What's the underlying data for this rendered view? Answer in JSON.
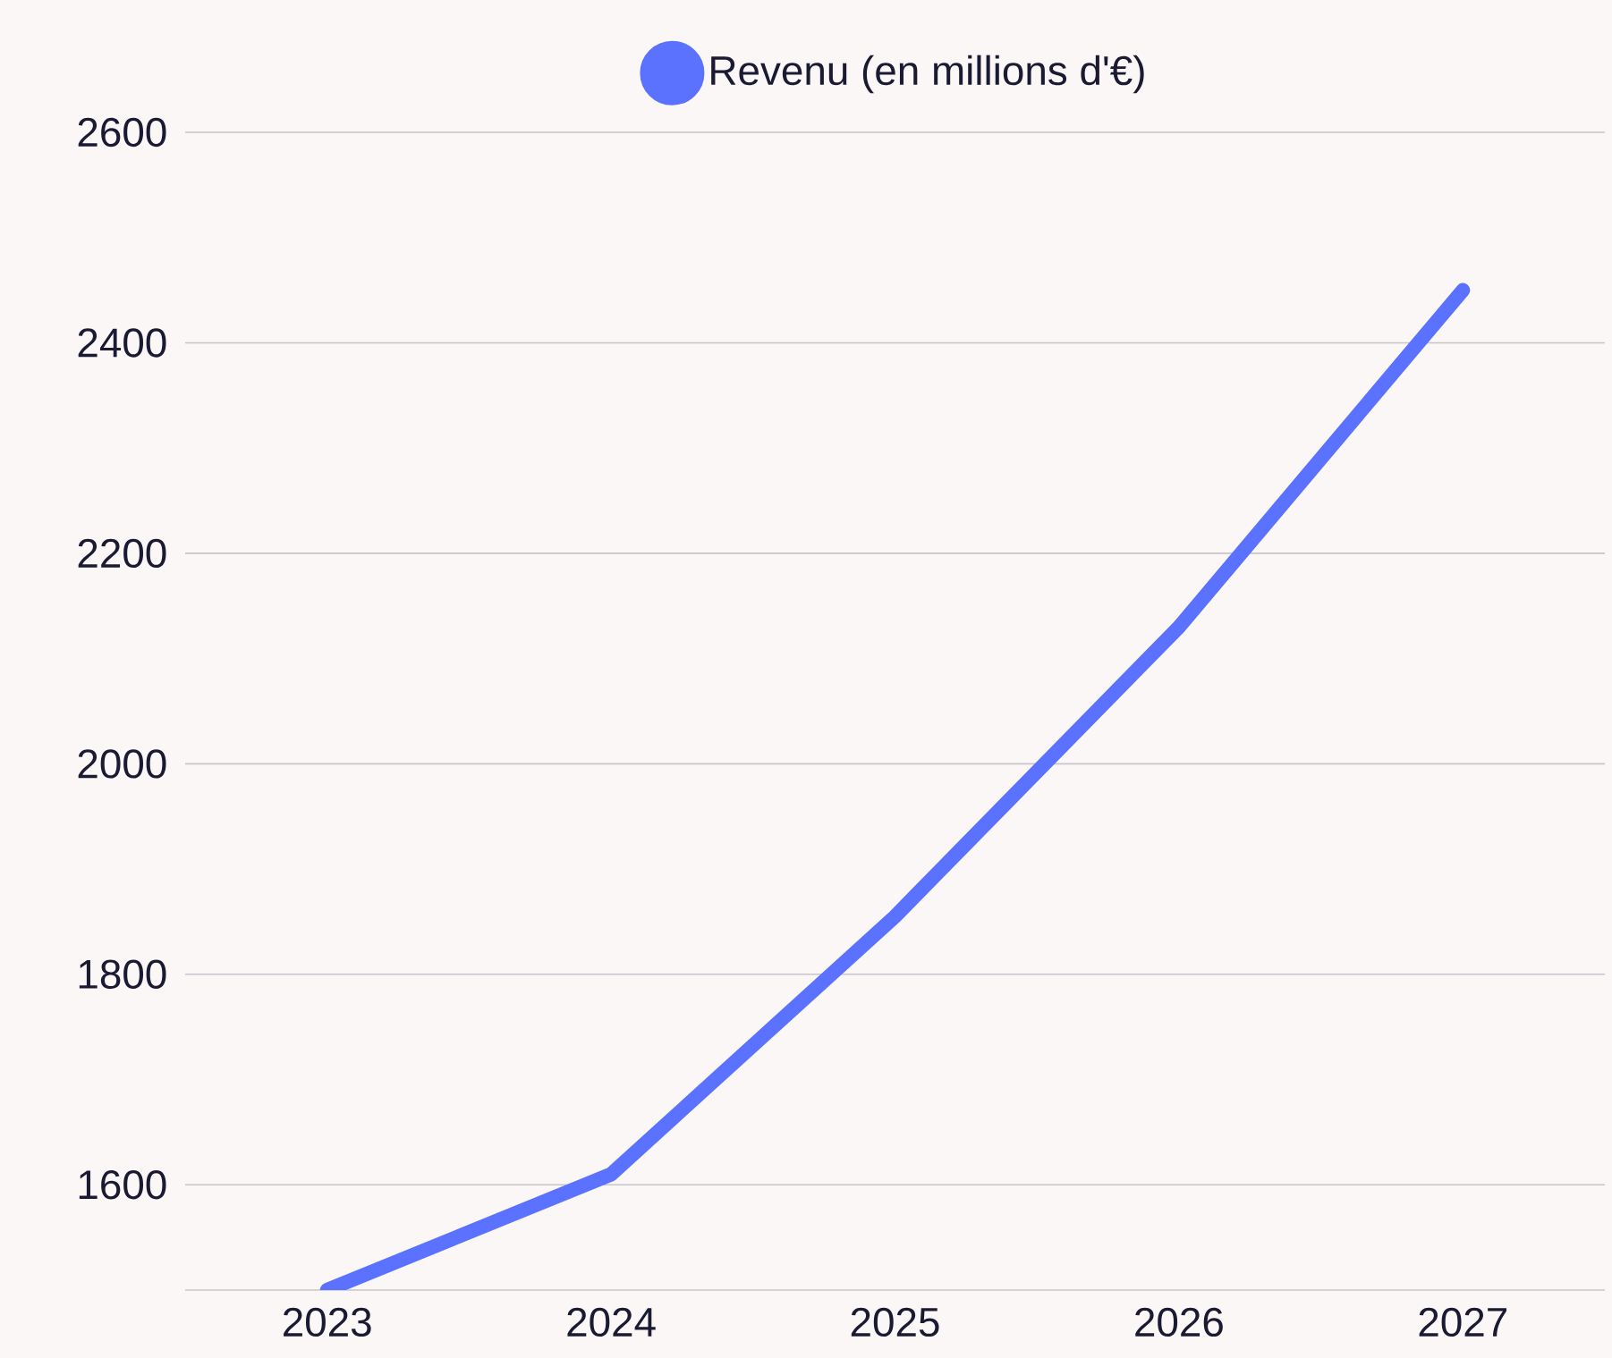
{
  "chart_data": {
    "type": "line",
    "categories": [
      "2023",
      "2024",
      "2025",
      "2026",
      "2027"
    ],
    "series": [
      {
        "name": "Revenu (en millions d'€)",
        "color": "#5a72ff",
        "values": [
          1500,
          1610,
          1855,
          2130,
          2450
        ]
      }
    ],
    "ylim": [
      1500,
      2600
    ],
    "yticks": [
      1600,
      1800,
      2000,
      2200,
      2400,
      2600
    ],
    "grid": "y",
    "legend": "top",
    "marker": "none",
    "line_style": "solid"
  }
}
